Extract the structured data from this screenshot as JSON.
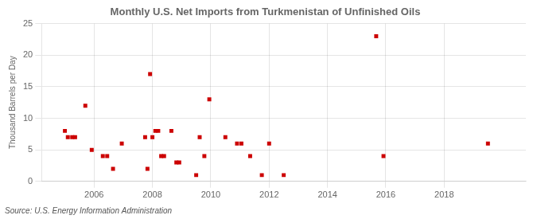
{
  "chart_data": {
    "type": "scatter",
    "title": "Monthly U.S. Net Imports from Turkmenistan of Unfinished Oils",
    "ylabel": "Thousand Barrels per Day",
    "annotations": [
      "Source: U.S. Energy Information Administration"
    ],
    "color": "#cc0000",
    "marker": "square",
    "x": [
      2005.0,
      2005.1,
      2005.25,
      2005.35,
      2005.7,
      2005.92,
      2006.3,
      2006.45,
      2006.65,
      2006.95,
      2007.75,
      2007.83,
      2007.92,
      2008.0,
      2008.1,
      2008.2,
      2008.3,
      2008.4,
      2008.65,
      2008.82,
      2008.92,
      2009.5,
      2009.62,
      2009.78,
      2009.95,
      2010.5,
      2010.9,
      2011.05,
      2011.35,
      2011.75,
      2012.0,
      2012.5,
      2015.67,
      2015.92,
      2019.5
    ],
    "values": [
      8,
      7,
      7,
      7,
      12,
      5,
      4,
      4,
      2,
      6,
      7,
      2,
      17,
      7,
      8,
      8,
      4,
      4,
      8,
      3,
      3,
      1,
      7,
      4,
      13,
      7,
      6,
      6,
      4,
      1,
      6,
      1,
      23,
      4,
      6
    ],
    "xlim": [
      2004.2,
      2020.8
    ],
    "xticks": [
      2006,
      2008,
      2010,
      2012,
      2014,
      2016,
      2018
    ],
    "ylim": [
      0,
      25
    ],
    "yticks": [
      0,
      5,
      10,
      15,
      20,
      25
    ],
    "grid": true
  }
}
